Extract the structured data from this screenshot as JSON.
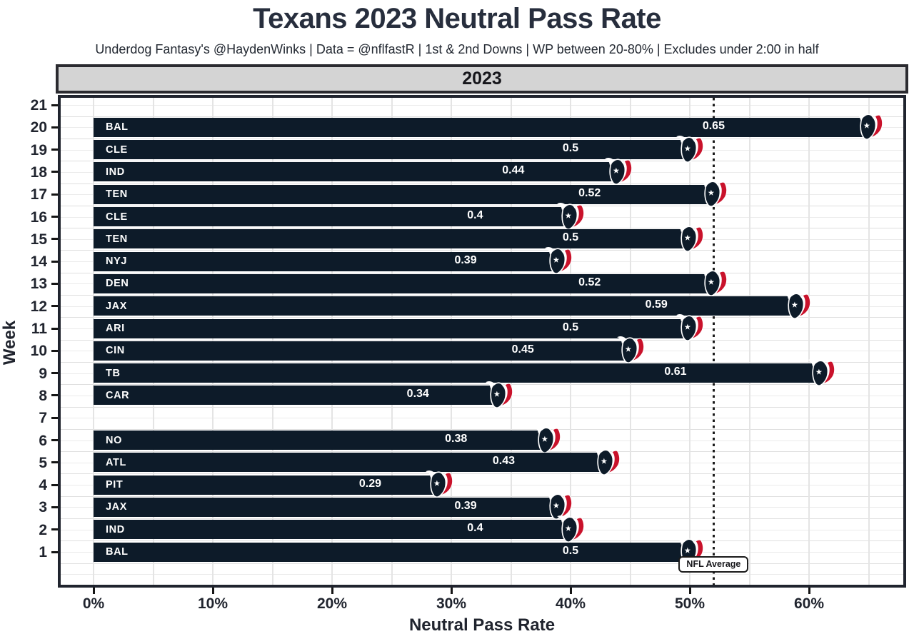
{
  "header": {
    "title": "Texans 2023 Neutral Pass Rate",
    "subtitle": "Underdog Fantasy's @HaydenWinks | Data = @nflfastR | 1st & 2nd Downs | WP between 20-80% | Excludes under 2:00 in half"
  },
  "facet": {
    "label": "2023"
  },
  "axes": {
    "x_title": "Neutral Pass Rate",
    "y_title": "Week",
    "x_ticks": [
      {
        "value": 0,
        "label": "0%"
      },
      {
        "value": 10,
        "label": "10%"
      },
      {
        "value": 20,
        "label": "20%"
      },
      {
        "value": 30,
        "label": "30%"
      },
      {
        "value": 40,
        "label": "40%"
      },
      {
        "value": 50,
        "label": "50%"
      },
      {
        "value": 60,
        "label": "60%"
      }
    ],
    "y_ticks": [
      21,
      20,
      19,
      18,
      17,
      16,
      15,
      14,
      13,
      12,
      11,
      10,
      9,
      8,
      7,
      6,
      5,
      4,
      3,
      2,
      1
    ]
  },
  "reference_line": {
    "value_pct": 52,
    "label": "NFL Average"
  },
  "chart_data": {
    "type": "bar",
    "orientation": "horizontal",
    "title": "Texans 2023 Neutral Pass Rate",
    "xlabel": "Neutral Pass Rate",
    "ylabel": "Week",
    "xlim_pct": [
      0,
      68
    ],
    "grid": true,
    "y_axis_weeks": [
      21,
      20,
      19,
      18,
      17,
      16,
      15,
      14,
      13,
      12,
      11,
      10,
      9,
      8,
      7,
      6,
      5,
      4,
      3,
      2,
      1
    ],
    "weeks_without_bars": [
      21,
      7
    ],
    "bars": [
      {
        "week": 20,
        "opponent": "BAL",
        "value": 0.65,
        "label": "0.65"
      },
      {
        "week": 19,
        "opponent": "CLE",
        "value": 0.5,
        "label": "0.5"
      },
      {
        "week": 18,
        "opponent": "IND",
        "value": 0.44,
        "label": "0.44"
      },
      {
        "week": 17,
        "opponent": "TEN",
        "value": 0.52,
        "label": "0.52"
      },
      {
        "week": 16,
        "opponent": "CLE",
        "value": 0.4,
        "label": "0.4"
      },
      {
        "week": 15,
        "opponent": "TEN",
        "value": 0.5,
        "label": "0.5"
      },
      {
        "week": 14,
        "opponent": "NYJ",
        "value": 0.39,
        "label": "0.39"
      },
      {
        "week": 13,
        "opponent": "DEN",
        "value": 0.52,
        "label": "0.52"
      },
      {
        "week": 12,
        "opponent": "JAX",
        "value": 0.59,
        "label": "0.59"
      },
      {
        "week": 11,
        "opponent": "ARI",
        "value": 0.5,
        "label": "0.5"
      },
      {
        "week": 10,
        "opponent": "CIN",
        "value": 0.45,
        "label": "0.45"
      },
      {
        "week": 9,
        "opponent": "TB",
        "value": 0.61,
        "label": "0.61"
      },
      {
        "week": 8,
        "opponent": "CAR",
        "value": 0.34,
        "label": "0.34"
      },
      {
        "week": 6,
        "opponent": "NO",
        "value": 0.38,
        "label": "0.38"
      },
      {
        "week": 5,
        "opponent": "ATL",
        "value": 0.43,
        "label": "0.43"
      },
      {
        "week": 4,
        "opponent": "PIT",
        "value": 0.29,
        "label": "0.29"
      },
      {
        "week": 3,
        "opponent": "JAX",
        "value": 0.39,
        "label": "0.39"
      },
      {
        "week": 2,
        "opponent": "IND",
        "value": 0.4,
        "label": "0.4"
      },
      {
        "week": 1,
        "opponent": "BAL",
        "value": 0.5,
        "label": "0.5"
      }
    ],
    "reference_line": {
      "value_pct": 52,
      "label": "NFL Average"
    },
    "legend": null
  },
  "icons": {
    "bar_end": "texans-bull-icon"
  },
  "colors": {
    "bar": "#0d1b29",
    "bar_text": "#ffffff",
    "logo_red": "#c9122b",
    "title_text": "#272e3d",
    "axis_text": "#20242e",
    "strip_bg": "#d4d4d4",
    "strip_border": "#2b2b30",
    "panel_border": "#20242e",
    "grid_line": "#e4e4e4",
    "reference_line": "#1b1b1b"
  }
}
